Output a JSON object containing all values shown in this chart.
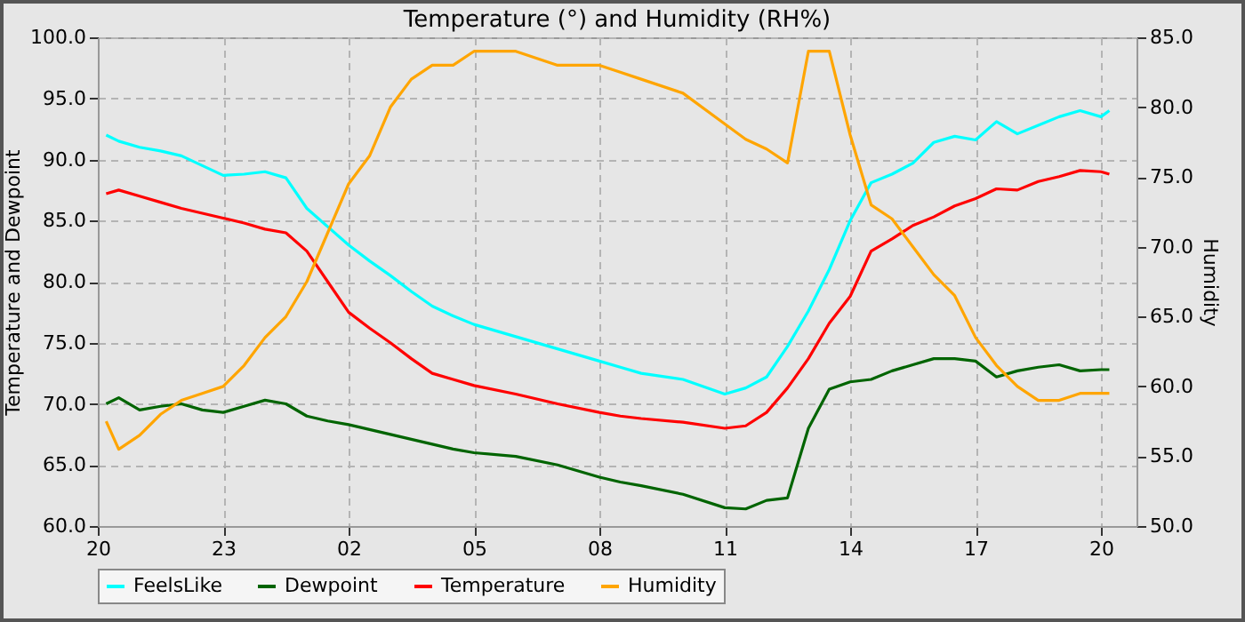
{
  "chart_data": {
    "type": "line",
    "title": "Temperature (°) and Humidity (RH%)",
    "ylabel": "Temperature and Dewpoint",
    "y2label": "Humidity",
    "xlim": [
      "--01-01T20:00",
      "--01-02T20:51"
    ],
    "xticks": [
      {
        "value": "--01-01T20:00",
        "label": "20"
      },
      {
        "value": "--01-01T23:00",
        "label": "23"
      },
      {
        "value": "--01-02T02:00",
        "label": "02"
      },
      {
        "value": "--01-02T05:00",
        "label": "05"
      },
      {
        "value": "--01-02T08:00",
        "label": "08"
      },
      {
        "value": "--01-02T11:00",
        "label": "11"
      },
      {
        "value": "--01-02T14:00",
        "label": "14"
      },
      {
        "value": "--01-02T17:00",
        "label": "17"
      },
      {
        "value": "--01-02T20:00",
        "label": "20"
      }
    ],
    "ylim": [
      60,
      100
    ],
    "yticks": [
      {
        "value": 60,
        "label": "60.0"
      },
      {
        "value": 65,
        "label": "65.0"
      },
      {
        "value": 70,
        "label": "70.0"
      },
      {
        "value": 75,
        "label": "75.0"
      },
      {
        "value": 80,
        "label": "80.0"
      },
      {
        "value": 85,
        "label": "85.0"
      },
      {
        "value": 90,
        "label": "90.0"
      },
      {
        "value": 95,
        "label": "95.0"
      },
      {
        "value": 100,
        "label": "100.0"
      }
    ],
    "y2lim": [
      50,
      85
    ],
    "y2ticks": [
      {
        "value": 50,
        "label": "50.0"
      },
      {
        "value": 55,
        "label": "55.0"
      },
      {
        "value": 60,
        "label": "60.0"
      },
      {
        "value": 65,
        "label": "65.0"
      },
      {
        "value": 70,
        "label": "70.0"
      },
      {
        "value": 75,
        "label": "75.0"
      },
      {
        "value": 80,
        "label": "80.0"
      },
      {
        "value": 85,
        "label": "85.0"
      }
    ],
    "grid": true,
    "legend": "bottom",
    "marker": "none",
    "line_style": "solid",
    "x": [
      "--01-01T20:12",
      "--01-01T20:30",
      "--01-01T21:00",
      "--01-01T21:30",
      "--01-01T22:00",
      "--01-01T22:30",
      "--01-01T23:00",
      "--01-01T23:30",
      "--01-02T00:00",
      "--01-02T00:30",
      "--01-02T01:00",
      "--01-02T01:30",
      "--01-02T02:00",
      "--01-02T02:30",
      "--01-02T03:00",
      "--01-02T03:30",
      "--01-02T04:00",
      "--01-02T04:30",
      "--01-02T05:00",
      "--01-02T06:00",
      "--01-02T07:00",
      "--01-02T08:00",
      "--01-02T08:30",
      "--01-02T09:00",
      "--01-02T10:00",
      "--01-02T11:00",
      "--01-02T11:30",
      "--01-02T12:00",
      "--01-02T12:30",
      "--01-02T13:00",
      "--01-02T13:30",
      "--01-02T14:00",
      "--01-02T14:30",
      "--01-02T15:00",
      "--01-02T15:30",
      "--01-02T16:00",
      "--01-02T16:30",
      "--01-02T17:00",
      "--01-02T17:30",
      "--01-02T18:00",
      "--01-02T18:30",
      "--01-02T19:00",
      "--01-02T19:30",
      "--01-02T20:00",
      "--01-02T20:12"
    ],
    "series": [
      {
        "name": "FeelsLike",
        "color": "#00ffff",
        "values": [
          92,
          91.5,
          91,
          90.7,
          90.3,
          89.5,
          88.7,
          88.8,
          89,
          88.5,
          86,
          84.5,
          83,
          81.7,
          80.5,
          79.2,
          78,
          77.2,
          76.5,
          75.5,
          74.5,
          73.5,
          73,
          72.5,
          72,
          70.8,
          71.3,
          72.2,
          74.7,
          77.6,
          81,
          85,
          88.1,
          88.8,
          89.7,
          91.4,
          91.9,
          91.6,
          93.1,
          92.1,
          92.8,
          93.5,
          94,
          93.5,
          94
        ]
      },
      {
        "name": "Dewpoint",
        "color": "#006400",
        "values": [
          70,
          70.5,
          69.5,
          69.8,
          70,
          69.5,
          69.3,
          69.8,
          70.3,
          70,
          69,
          68.6,
          68.3,
          67.9,
          67.5,
          67.1,
          66.7,
          66.3,
          66,
          65.7,
          65,
          64,
          63.6,
          63.3,
          62.6,
          61.5,
          61.4,
          62.1,
          62.3,
          68,
          71.2,
          71.8,
          72,
          72.7,
          73.2,
          73.7,
          73.7,
          73.5,
          72.2,
          72.7,
          73,
          73.2,
          72.7,
          72.8,
          72.8
        ]
      },
      {
        "name": "Temperature",
        "color": "#ff0000",
        "values": [
          87.2,
          87.5,
          87,
          86.5,
          86,
          85.6,
          85.2,
          84.8,
          84.3,
          84,
          82.5,
          80,
          77.5,
          76.2,
          75,
          73.7,
          72.5,
          72,
          71.5,
          70.8,
          70,
          69.3,
          69,
          68.8,
          68.5,
          68,
          68.2,
          69.3,
          71.3,
          73.7,
          76.6,
          78.8,
          82.5,
          83.5,
          84.6,
          85.3,
          86.2,
          86.8,
          87.6,
          87.5,
          88.2,
          88.6,
          89.1,
          89,
          88.8
        ]
      },
      {
        "name": "Humidity",
        "color": "#ffa500",
        "axis": "y2",
        "values": [
          57.5,
          55.5,
          56.5,
          58,
          59,
          59.5,
          60,
          61.5,
          63.5,
          65,
          67.5,
          71,
          74.5,
          76.5,
          80,
          82,
          83,
          83,
          84,
          84,
          83,
          83,
          82.5,
          82,
          81,
          78.8,
          77.7,
          77,
          76,
          84,
          84,
          78,
          73,
          72,
          70,
          68,
          66.5,
          63.5,
          61.5,
          60,
          59,
          59,
          59.5,
          59.5,
          59.5
        ]
      }
    ]
  }
}
